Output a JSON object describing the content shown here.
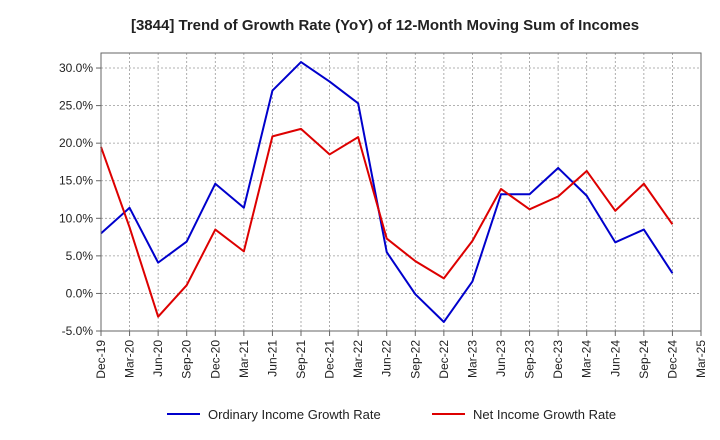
{
  "chart_data": {
    "type": "line",
    "title": "[3844]  Trend of Growth Rate (YoY) of 12-Month Moving Sum of Incomes",
    "x": [
      "Dec-19",
      "Mar-20",
      "Jun-20",
      "Sep-20",
      "Dec-20",
      "Mar-21",
      "Jun-21",
      "Sep-21",
      "Dec-21",
      "Mar-22",
      "Jun-22",
      "Sep-22",
      "Dec-22",
      "Mar-23",
      "Jun-23",
      "Sep-23",
      "Dec-23",
      "Mar-24",
      "Jun-24",
      "Sep-24",
      "Dec-24",
      "Mar-25"
    ],
    "ylim": [
      -5,
      32
    ],
    "yticks": [
      -5,
      0,
      5,
      10,
      15,
      20,
      25,
      30
    ],
    "ytick_labels": [
      "-5.0%",
      "0.0%",
      "5.0%",
      "10.0%",
      "15.0%",
      "20.0%",
      "25.0%",
      "30.0%"
    ],
    "grid": true,
    "legend_position": "bottom",
    "series": [
      {
        "name": "Ordinary Income Growth Rate",
        "color": "#0000cc",
        "values": [
          8.0,
          11.4,
          4.1,
          6.9,
          14.6,
          11.4,
          27.0,
          30.8,
          28.2,
          25.3,
          5.5,
          -0.1,
          -3.8,
          1.6,
          13.2,
          13.2,
          16.7,
          13.0,
          6.8,
          8.5,
          2.7,
          null
        ]
      },
      {
        "name": "Net Income Growth Rate",
        "color": "#dd0000",
        "values": [
          19.5,
          8.8,
          -3.1,
          1.1,
          8.5,
          5.6,
          20.9,
          21.9,
          18.5,
          20.8,
          7.3,
          4.3,
          2.0,
          7.0,
          13.9,
          11.2,
          12.9,
          16.3,
          11.0,
          14.6,
          9.2,
          null
        ]
      }
    ]
  }
}
